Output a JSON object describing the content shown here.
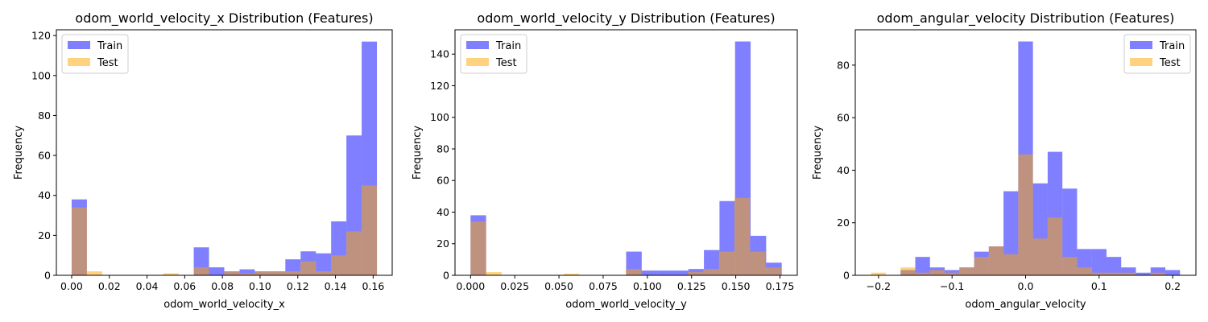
{
  "colors": {
    "train": "#0000ff",
    "test": "#ffa500"
  },
  "chart_data": [
    {
      "type": "histogram",
      "title": "odom_world_velocity_x Distribution (Features)",
      "xlabel": "odom_world_velocity_x",
      "ylabel": "Frequency",
      "xlim": [
        -0.0081,
        0.1701
      ],
      "ylim": [
        0,
        122.9
      ],
      "xticks": [
        0,
        0.02,
        0.04,
        0.06,
        0.08,
        0.1,
        0.12,
        0.14,
        0.16
      ],
      "xtick_labels": [
        "0.00",
        "0.02",
        "0.04",
        "0.06",
        "0.08",
        "0.10",
        "0.12",
        "0.14",
        "0.16"
      ],
      "yticks": [
        0,
        20,
        40,
        60,
        80,
        100,
        120
      ],
      "ytick_labels": [
        "0",
        "20",
        "40",
        "60",
        "80",
        "100",
        "120"
      ],
      "legend_position": "upper left",
      "series": [
        {
          "name": "Train",
          "color_key": "train",
          "edges": [
            0.0,
            0.0081,
            0.0162,
            0.0243,
            0.0324,
            0.0405,
            0.0486,
            0.0567,
            0.0648,
            0.0729,
            0.081,
            0.0891,
            0.0972,
            0.1053,
            0.1134,
            0.1215,
            0.1296,
            0.1377,
            0.1458,
            0.1539,
            0.162
          ],
          "counts": [
            38,
            0,
            0,
            0,
            0,
            0,
            0,
            0,
            14,
            4,
            2,
            3,
            2,
            2,
            8,
            12,
            11,
            27,
            70,
            117
          ]
        },
        {
          "name": "Test",
          "color_key": "test",
          "edges": [
            0.0,
            0.0081,
            0.0162,
            0.0243,
            0.0324,
            0.0405,
            0.0486,
            0.0567,
            0.0648,
            0.0729,
            0.081,
            0.0891,
            0.0972,
            0.1053,
            0.1134,
            0.1215,
            0.1296,
            0.1377,
            0.1458,
            0.1539,
            0.162
          ],
          "counts": [
            34,
            2,
            0,
            0,
            0,
            0,
            1,
            0,
            4,
            0,
            2,
            1,
            2,
            2,
            2,
            7,
            2,
            10,
            22,
            45
          ]
        }
      ]
    },
    {
      "type": "histogram",
      "title": "odom_world_velocity_y Distribution (Features)",
      "xlabel": "odom_world_velocity_y",
      "ylabel": "Frequency",
      "xlim": [
        -0.0088,
        0.1848
      ],
      "ylim": [
        0,
        155.4
      ],
      "xticks": [
        0,
        0.025,
        0.05,
        0.075,
        0.1,
        0.125,
        0.15,
        0.175
      ],
      "xtick_labels": [
        "0.000",
        "0.025",
        "0.050",
        "0.075",
        "0.100",
        "0.125",
        "0.150",
        "0.175"
      ],
      "yticks": [
        0,
        20,
        40,
        60,
        80,
        100,
        120,
        140
      ],
      "ytick_labels": [
        "0",
        "20",
        "40",
        "60",
        "80",
        "100",
        "120",
        "140"
      ],
      "legend_position": "upper left",
      "series": [
        {
          "name": "Train",
          "color_key": "train",
          "edges": [
            0.0,
            0.0088,
            0.0176,
            0.0264,
            0.0352,
            0.044,
            0.0528,
            0.0616,
            0.0704,
            0.0792,
            0.088,
            0.0968,
            0.1056,
            0.1144,
            0.1232,
            0.132,
            0.1408,
            0.1496,
            0.1584,
            0.1672,
            0.176
          ],
          "counts": [
            38,
            0,
            0,
            0,
            0,
            0,
            0,
            0,
            0,
            0,
            15,
            3,
            3,
            3,
            4,
            16,
            47,
            148,
            25,
            8
          ]
        },
        {
          "name": "Test",
          "color_key": "test",
          "edges": [
            0.0,
            0.00878,
            0.01756,
            0.02634,
            0.03512,
            0.0439,
            0.05268,
            0.06146,
            0.07024,
            0.07902,
            0.0878,
            0.09658,
            0.10536,
            0.11414,
            0.12292,
            0.1317,
            0.14048,
            0.14926,
            0.15804,
            0.16682,
            0.1756
          ],
          "counts": [
            34,
            2,
            0,
            0,
            0,
            0,
            1,
            0,
            0,
            0,
            4,
            0,
            0,
            0,
            2,
            4,
            15,
            49,
            15,
            5
          ]
        }
      ]
    },
    {
      "type": "histogram",
      "title": "odom_angular_velocity Distribution (Features)",
      "xlabel": "odom_angular_velocity",
      "ylabel": "Frequency",
      "xlim": [
        -0.2316,
        0.2316
      ],
      "ylim": [
        0,
        93.45
      ],
      "xticks": [
        -0.2,
        -0.1,
        0,
        0.1,
        0.2
      ],
      "xtick_labels": [
        "−0.2",
        "−0.1",
        "0.0",
        "0.1",
        "0.2"
      ],
      "yticks": [
        0,
        20,
        40,
        60,
        80
      ],
      "ytick_labels": [
        "0",
        "20",
        "40",
        "60",
        "80"
      ],
      "legend_position": "upper right",
      "series": [
        {
          "name": "Train",
          "color_key": "train",
          "edges": [
            -0.17,
            -0.15,
            -0.13,
            -0.11,
            -0.09,
            -0.07,
            -0.05,
            -0.03,
            -0.01,
            0.01,
            0.03,
            0.05,
            0.07,
            0.09,
            0.11,
            0.13,
            0.15,
            0.17,
            0.19,
            0.21
          ],
          "counts": [
            2,
            7,
            3,
            2,
            3,
            9,
            11,
            32,
            89,
            35,
            47,
            33,
            10,
            10,
            7,
            3,
            1,
            3,
            2
          ]
        },
        {
          "name": "Test",
          "color_key": "test",
          "edges": [
            -0.21,
            -0.19,
            -0.17,
            -0.15,
            -0.13,
            -0.11,
            -0.09,
            -0.07,
            -0.05,
            -0.03,
            -0.01,
            0.01,
            0.03,
            0.05,
            0.07,
            0.09,
            0.11,
            0.13,
            0.15,
            0.17,
            0.19,
            0.21
          ],
          "counts": [
            1,
            0,
            3,
            1,
            2,
            1,
            3,
            7,
            11,
            8,
            46,
            14,
            22,
            7,
            3,
            1,
            1,
            1,
            0,
            1,
            0
          ]
        }
      ]
    }
  ]
}
